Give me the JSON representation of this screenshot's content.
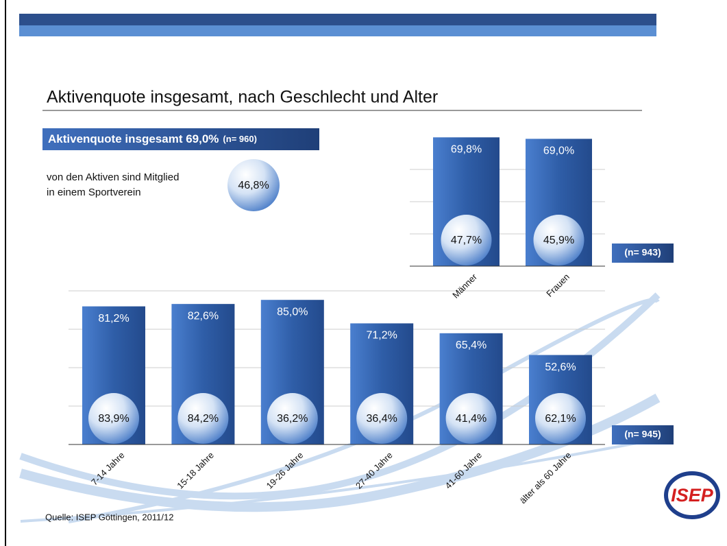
{
  "title": "Aktivenquote insgesamt, nach Geschlecht und Alter",
  "banner": {
    "text": "Aktivenquote insgesamt 69,0%",
    "n": "(n= 960)"
  },
  "member_note": {
    "text_1": "von den Aktiven sind Mitglied",
    "text_2": "in einem Sportverein",
    "value_label": "46,8%"
  },
  "source": "Quelle: ISEP Göttingen, 2011/12",
  "logo": "ISEP",
  "chart_data": [
    {
      "type": "bar",
      "categories": [
        "Männer",
        "Frauen"
      ],
      "ylim": [
        0,
        100
      ],
      "note": "(n= 943)",
      "series": [
        {
          "color": "#2f5ea8",
          "values": [
            69.8,
            69.0
          ],
          "value_labels": [
            "69,8%",
            "69,0%"
          ]
        },
        {
          "values": [
            47.7,
            45.9
          ],
          "value_labels": [
            "47,7%",
            "45,9%"
          ]
        }
      ]
    },
    {
      "type": "bar",
      "categories": [
        "7-14 Jahre",
        "15-18 Jahre",
        "19-26 Jahre",
        "27-40 Jahre",
        "41-60 Jahre",
        "älter als 60 Jahre"
      ],
      "ylim": [
        0,
        100
      ],
      "note": "(n= 945)",
      "series": [
        {
          "color": "#2f5ea8",
          "values": [
            81.2,
            82.6,
            85.0,
            71.2,
            65.4,
            52.6
          ],
          "value_labels": [
            "81,2%",
            "82,6%",
            "85,0%",
            "71,2%",
            "65,4%",
            "52,6%"
          ]
        },
        {
          "values": [
            83.9,
            84.2,
            36.2,
            36.4,
            41.4,
            62.1
          ],
          "value_labels": [
            "83,9%",
            "84,2%",
            "36,2%",
            "36,4%",
            "41,4%",
            "62,1%"
          ]
        }
      ]
    }
  ]
}
